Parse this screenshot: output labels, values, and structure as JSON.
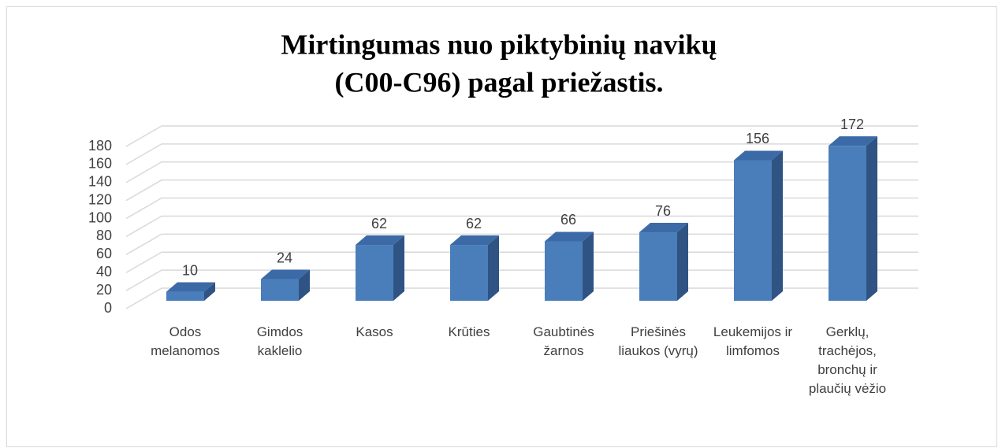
{
  "chart_data": {
    "type": "bar3d",
    "title": [
      "Mirtingumas nuo piktybinių navikų",
      "(C00-C96) pagal priežastis."
    ],
    "categories": [
      "Odos melanomos",
      "Gimdos kaklelio",
      "Kasos",
      "Krūties",
      "Gaubtinės žarnos",
      "Priešinės liaukos (vyrų)",
      "Leukemijos ir limfomos",
      "Gerklų, trachėjos, bronchų ir plaučių vėžio"
    ],
    "values": [
      10,
      24,
      62,
      62,
      66,
      76,
      156,
      172
    ],
    "color": "#4a7ebb",
    "ylim": [
      0,
      180
    ],
    "yticks": [
      0,
      20,
      40,
      60,
      80,
      100,
      120,
      140,
      160,
      180
    ],
    "grid": true
  }
}
